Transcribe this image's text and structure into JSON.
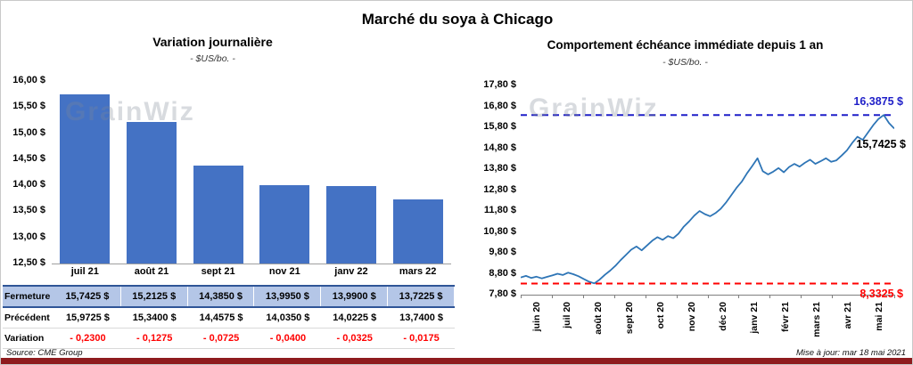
{
  "page": {
    "title": "Marché du soya à Chicago",
    "source_note": "Source: CME Group",
    "update_note": "Mise à jour: mar 18 mai 2021",
    "accent_bar_color": "#8E1B1E"
  },
  "left": {
    "title": "Variation  journalière",
    "subtitle": "- $US/bo. -",
    "watermark": "GrainWiz",
    "y_ticks": [
      "16,00 $",
      "15,50 $",
      "15,00 $",
      "14,50 $",
      "14,00 $",
      "13,50 $",
      "13,00 $",
      "12,50 $"
    ],
    "table": {
      "rows": [
        {
          "label": "Fermeture",
          "highlight": true,
          "negative": false,
          "values": [
            "15,7425 $",
            "15,2125 $",
            "14,3850 $",
            "13,9950 $",
            "13,9900 $",
            "13,7225 $"
          ]
        },
        {
          "label": "Précédent",
          "highlight": false,
          "negative": false,
          "values": [
            "15,9725 $",
            "15,3400 $",
            "14,4575 $",
            "14,0350 $",
            "14,0225 $",
            "13,7400 $"
          ]
        },
        {
          "label": "Variation",
          "highlight": false,
          "negative": true,
          "values": [
            "- 0,2300",
            "- 0,1275",
            "- 0,0725",
            "- 0,0400",
            "- 0,0325",
            "- 0,0175"
          ]
        }
      ]
    }
  },
  "right": {
    "title": "Comportement  échéance immédiate depuis 1 an",
    "subtitle": "- $US/bo. -",
    "watermark": "GrainWiz",
    "y_ticks": [
      "17,80 $",
      "16,80 $",
      "15,80 $",
      "14,80 $",
      "13,80 $",
      "12,80 $",
      "11,80 $",
      "10,80 $",
      "9,80 $",
      "8,80 $",
      "7,80 $"
    ],
    "max_label": "16,3875 $",
    "last_label": "15,7425 $",
    "min_label": "8,3325 $"
  },
  "chart_data": [
    {
      "type": "bar",
      "title": "Variation journalière",
      "subtitle": "- $US/bo. -",
      "categories": [
        "juil 21",
        "août 21",
        "sept 21",
        "nov 21",
        "janv 22",
        "mars 22"
      ],
      "values": [
        15.7425,
        15.2125,
        14.385,
        13.995,
        13.99,
        13.7225
      ],
      "previous": [
        15.9725,
        15.34,
        14.4575,
        14.035,
        14.0225,
        13.74
      ],
      "variation": [
        -0.23,
        -0.1275,
        -0.0725,
        -0.04,
        -0.0325,
        -0.0175
      ],
      "ylim": [
        12.5,
        16.0
      ],
      "ytick_step": 0.5,
      "ylabel": "$US/bo.",
      "bar_color": "#4472C4",
      "grid": false,
      "legend": "none"
    },
    {
      "type": "line",
      "title": "Comportement échéance immédiate depuis 1 an",
      "subtitle": "- $US/bo. -",
      "x_tick_labels": [
        "juin 20",
        "juil 20",
        "août 20",
        "sept 20",
        "oct 20",
        "nov 20",
        "déc 20",
        "janv 21",
        "févr 21",
        "mars 21",
        "avr 21",
        "mai 21"
      ],
      "ylim": [
        7.8,
        17.8
      ],
      "ytick_step": 1.0,
      "line_color": "#2E75B6",
      "grid": false,
      "legend": "none",
      "max_reference": {
        "value": 16.3875,
        "label": "16,3875 $",
        "color": "#1F1FC8",
        "style": "dashed"
      },
      "min_reference": {
        "value": 8.3325,
        "label": "8,3325 $",
        "color": "#FF0000",
        "style": "dashed"
      },
      "last_point": {
        "value": 15.7425,
        "label": "15,7425 $"
      },
      "values": [
        8.62,
        8.7,
        8.6,
        8.66,
        8.58,
        8.65,
        8.72,
        8.8,
        8.74,
        8.85,
        8.78,
        8.68,
        8.55,
        8.42,
        8.34,
        8.52,
        8.75,
        8.95,
        9.18,
        9.45,
        9.7,
        9.95,
        10.1,
        9.92,
        10.15,
        10.38,
        10.55,
        10.42,
        10.6,
        10.5,
        10.72,
        11.05,
        11.3,
        11.58,
        11.8,
        11.65,
        11.55,
        11.7,
        11.9,
        12.2,
        12.55,
        12.9,
        13.2,
        13.6,
        13.95,
        14.32,
        13.7,
        13.55,
        13.68,
        13.85,
        13.65,
        13.9,
        14.05,
        13.92,
        14.1,
        14.25,
        14.05,
        14.18,
        14.32,
        14.15,
        14.22,
        14.45,
        14.7,
        15.05,
        15.35,
        15.2,
        15.55,
        15.9,
        16.2,
        16.3875,
        16.0,
        15.7425
      ]
    }
  ]
}
